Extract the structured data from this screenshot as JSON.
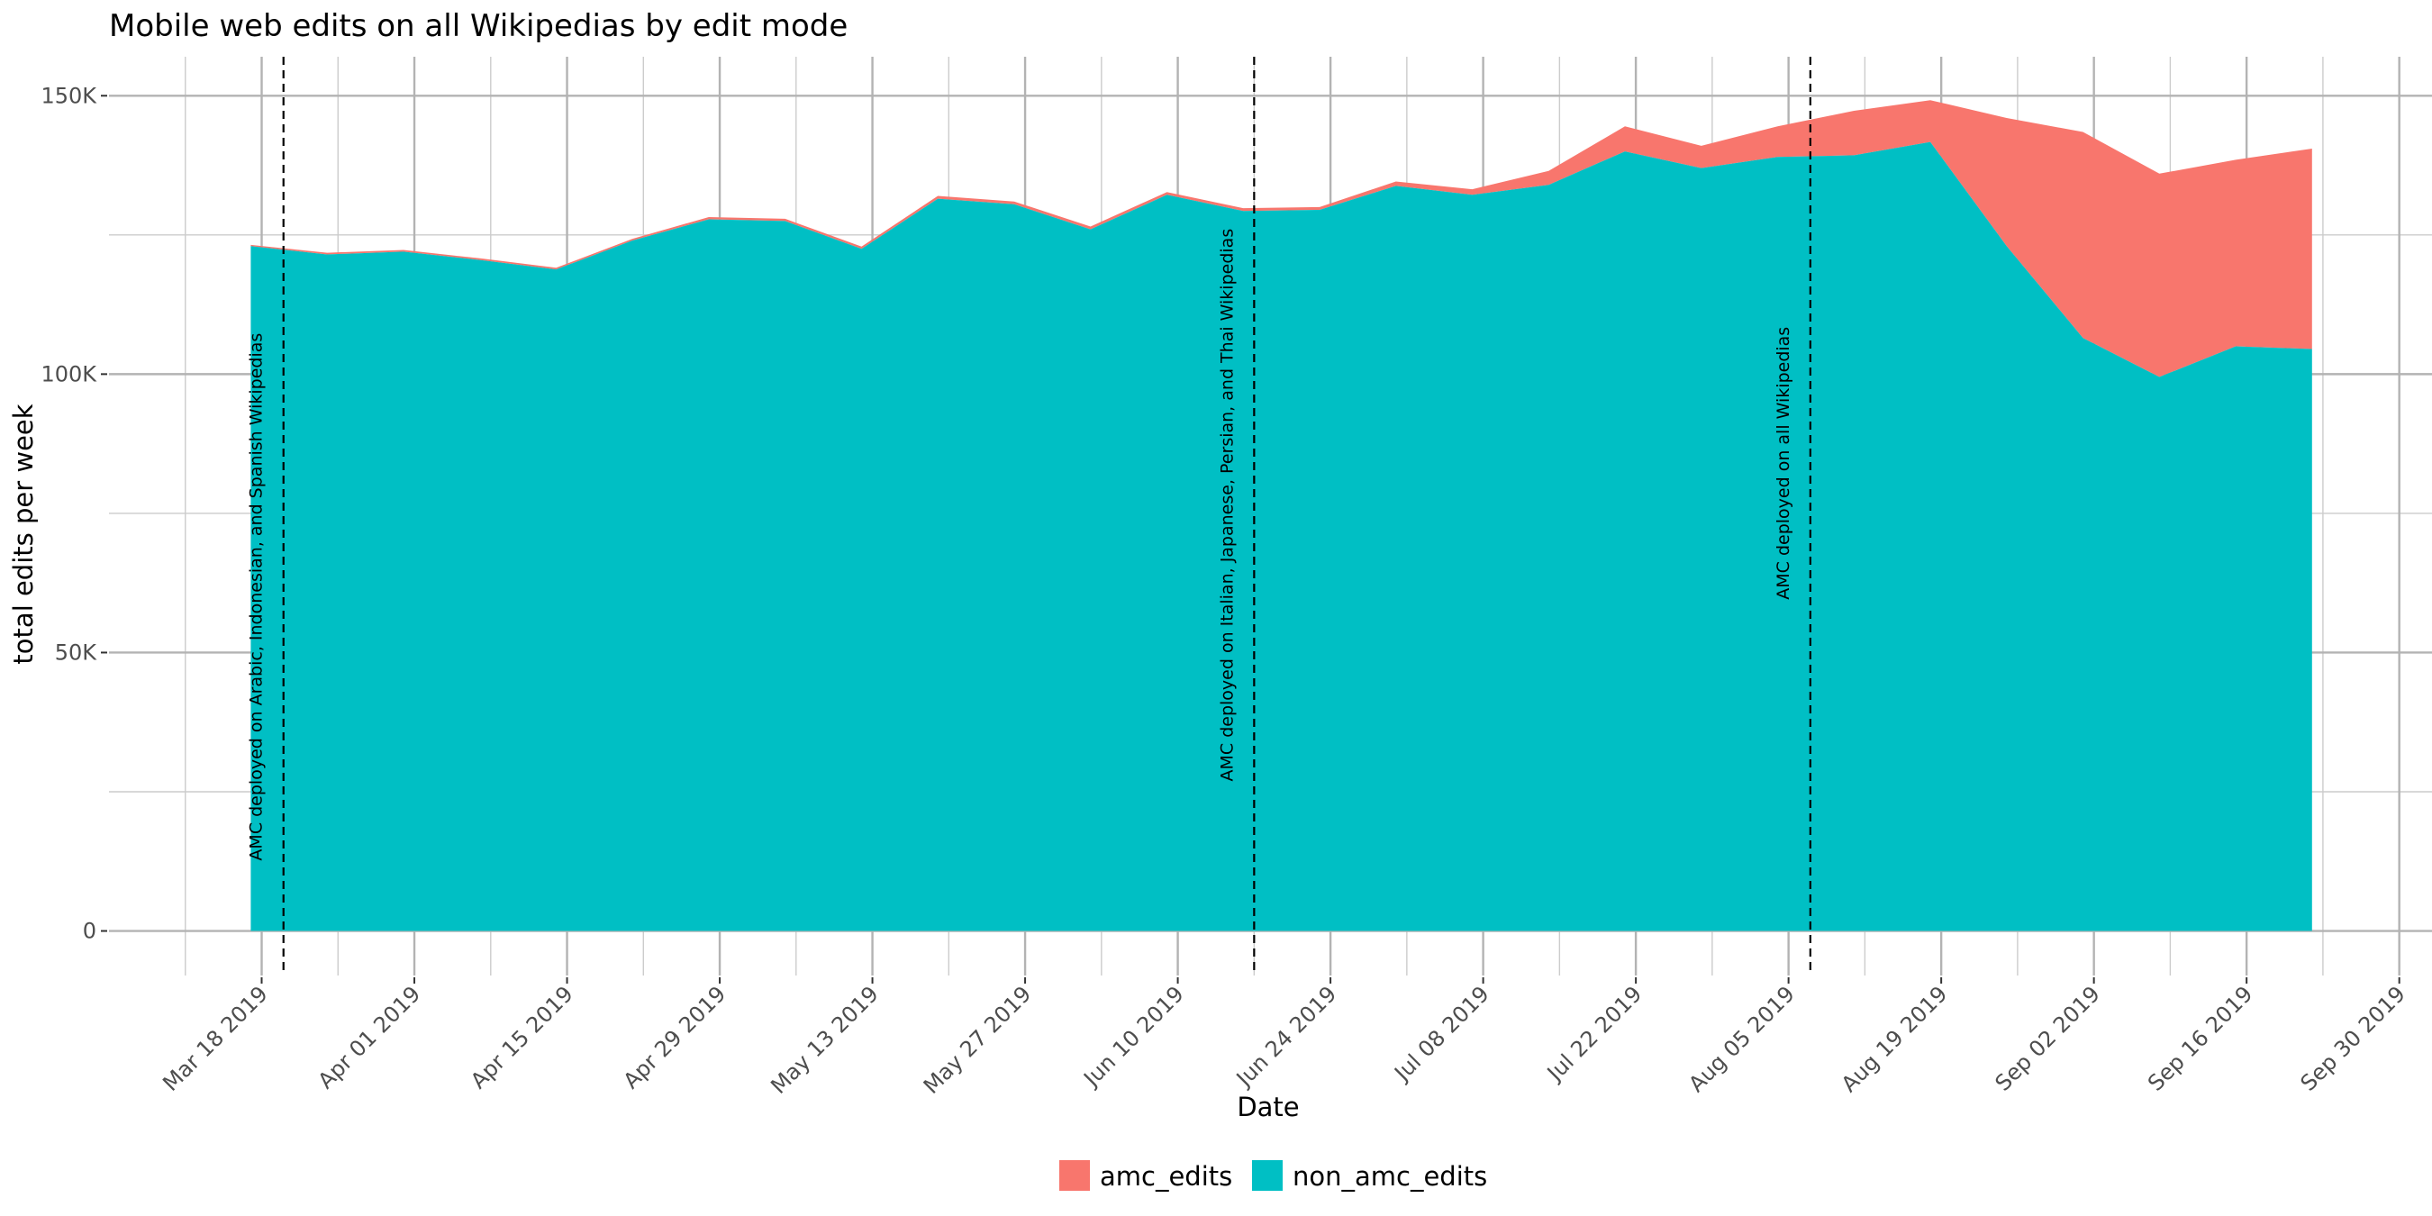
{
  "chart_data": {
    "type": "area",
    "stacked": true,
    "title": "Mobile web edits on all Wikipedias by edit mode",
    "xlabel": "Date",
    "ylabel": "total edits per week",
    "x_type": "date",
    "xlim": [
      "2019-03-04",
      "2019-10-03"
    ],
    "ylim": [
      -8000,
      157000
    ],
    "x_ticks": [
      {
        "date": "2019-03-18",
        "label": "Mar 18 2019"
      },
      {
        "date": "2019-04-01",
        "label": "Apr 01 2019"
      },
      {
        "date": "2019-04-15",
        "label": "Apr 15 2019"
      },
      {
        "date": "2019-04-29",
        "label": "Apr 29 2019"
      },
      {
        "date": "2019-05-13",
        "label": "May 13 2019"
      },
      {
        "date": "2019-05-27",
        "label": "May 27 2019"
      },
      {
        "date": "2019-06-10",
        "label": "Jun 10 2019"
      },
      {
        "date": "2019-06-24",
        "label": "Jun 24 2019"
      },
      {
        "date": "2019-07-08",
        "label": "Jul 08 2019"
      },
      {
        "date": "2019-07-22",
        "label": "Jul 22 2019"
      },
      {
        "date": "2019-08-05",
        "label": "Aug 05 2019"
      },
      {
        "date": "2019-08-19",
        "label": "Aug 19 2019"
      },
      {
        "date": "2019-09-02",
        "label": "Sep 02 2019"
      },
      {
        "date": "2019-09-16",
        "label": "Sep 16 2019"
      },
      {
        "date": "2019-09-30",
        "label": "Sep 30 2019"
      }
    ],
    "y_ticks": [
      {
        "value": 0,
        "label": "0"
      },
      {
        "value": 50000,
        "label": "50K"
      },
      {
        "value": 100000,
        "label": "100K"
      },
      {
        "value": 150000,
        "label": "150K"
      }
    ],
    "legend_position": "bottom",
    "x": [
      "2019-03-17",
      "2019-03-24",
      "2019-03-31",
      "2019-04-07",
      "2019-04-14",
      "2019-04-21",
      "2019-04-28",
      "2019-05-05",
      "2019-05-12",
      "2019-05-19",
      "2019-05-26",
      "2019-06-02",
      "2019-06-09",
      "2019-06-16",
      "2019-06-23",
      "2019-06-30",
      "2019-07-07",
      "2019-07-14",
      "2019-07-21",
      "2019-07-28",
      "2019-08-04",
      "2019-08-11",
      "2019-08-18",
      "2019-08-25",
      "2019-09-01",
      "2019-09-08",
      "2019-09-15",
      "2019-09-22"
    ],
    "series": [
      {
        "name": "amc_edits",
        "color": "#F8766D",
        "values": [
          200,
          300,
          300,
          300,
          300,
          300,
          400,
          400,
          400,
          500,
          500,
          500,
          500,
          500,
          500,
          800,
          1000,
          2500,
          4500,
          4000,
          5500,
          8000,
          7500,
          23000,
          37000,
          36500,
          33500,
          36000
        ]
      },
      {
        "name": "non_amc_edits",
        "color": "#00BFC4",
        "values": [
          123000,
          121500,
          122000,
          120500,
          118800,
          124000,
          127800,
          127500,
          122500,
          131500,
          130500,
          126000,
          132200,
          129300,
          129500,
          133800,
          132200,
          134000,
          140000,
          137000,
          139000,
          139300,
          141700,
          123000,
          106500,
          99500,
          105000,
          104500
        ]
      }
    ],
    "annotations": [
      {
        "date": "2019-03-20",
        "text": "AMC deployed on Arabic, Indonesian, and Spanish Wikipedias"
      },
      {
        "date": "2019-06-17",
        "text": "AMC deployed on Italian, Japanese, Persian, and Thai Wikipedias"
      },
      {
        "date": "2019-08-07",
        "text": "AMC deployed on all Wikipedias"
      }
    ]
  }
}
